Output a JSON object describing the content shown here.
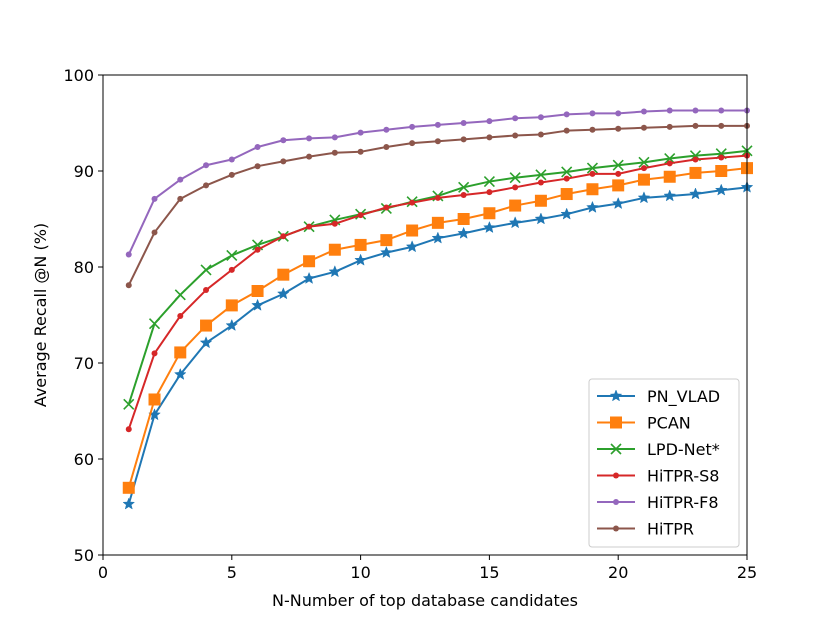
{
  "chart_data": {
    "type": "line",
    "title": "",
    "xlabel": "N-Number of top database candidates",
    "ylabel": "Average Recall @N (%)",
    "xlim": [
      0,
      25
    ],
    "ylim": [
      50,
      100
    ],
    "xticks": [
      0,
      5,
      10,
      15,
      20,
      25
    ],
    "yticks": [
      50,
      60,
      70,
      80,
      90,
      100
    ],
    "grid": false,
    "legend_position": "lower right",
    "x": [
      1,
      2,
      3,
      4,
      5,
      6,
      7,
      8,
      9,
      10,
      11,
      12,
      13,
      14,
      15,
      16,
      17,
      18,
      19,
      20,
      21,
      22,
      23,
      24,
      25
    ],
    "series": [
      {
        "name": "PN_VLAD",
        "color": "#1f77b4",
        "marker": "star",
        "values": [
          55.3,
          64.6,
          68.8,
          72.1,
          73.9,
          76.0,
          77.2,
          78.8,
          79.5,
          80.7,
          81.5,
          82.1,
          83.0,
          83.5,
          84.1,
          84.6,
          85.0,
          85.5,
          86.2,
          86.6,
          87.2,
          87.4,
          87.6,
          88.0,
          88.3
        ]
      },
      {
        "name": "PCAN",
        "color": "#ff7f0e",
        "marker": "square",
        "values": [
          57.0,
          66.2,
          71.1,
          73.9,
          76.0,
          77.5,
          79.2,
          80.6,
          81.8,
          82.3,
          82.8,
          83.8,
          84.6,
          85.0,
          85.6,
          86.4,
          86.9,
          87.6,
          88.1,
          88.5,
          89.1,
          89.4,
          89.8,
          90.0,
          90.3
        ]
      },
      {
        "name": "LPD-Net*",
        "color": "#2ca02c",
        "marker": "x",
        "values": [
          65.7,
          74.1,
          77.1,
          79.7,
          81.2,
          82.3,
          83.2,
          84.2,
          84.9,
          85.5,
          86.1,
          86.8,
          87.4,
          88.3,
          88.9,
          89.3,
          89.6,
          89.9,
          90.3,
          90.6,
          90.9,
          91.3,
          91.6,
          91.8,
          92.1
        ]
      },
      {
        "name": "HiTPR-S8",
        "color": "#d62728",
        "marker": "circle",
        "values": [
          63.1,
          71.0,
          74.9,
          77.6,
          79.7,
          81.8,
          83.2,
          84.2,
          84.5,
          85.4,
          86.2,
          86.7,
          87.2,
          87.5,
          87.8,
          88.3,
          88.8,
          89.2,
          89.7,
          89.7,
          90.3,
          90.8,
          91.2,
          91.4,
          91.6
        ]
      },
      {
        "name": "HiTPR-F8",
        "color": "#9467bd",
        "marker": "circle",
        "values": [
          81.3,
          87.1,
          89.1,
          90.6,
          91.2,
          92.5,
          93.2,
          93.4,
          93.5,
          94.0,
          94.3,
          94.6,
          94.8,
          95.0,
          95.2,
          95.5,
          95.6,
          95.9,
          96.0,
          96.0,
          96.2,
          96.3,
          96.3,
          96.3,
          96.3
        ]
      },
      {
        "name": "HiTPR",
        "color": "#8c564b",
        "marker": "circle",
        "values": [
          78.1,
          83.6,
          87.1,
          88.5,
          89.6,
          90.5,
          91.0,
          91.5,
          91.9,
          92.0,
          92.5,
          92.9,
          93.1,
          93.3,
          93.5,
          93.7,
          93.8,
          94.2,
          94.3,
          94.4,
          94.5,
          94.6,
          94.7,
          94.7,
          94.7
        ]
      }
    ]
  }
}
